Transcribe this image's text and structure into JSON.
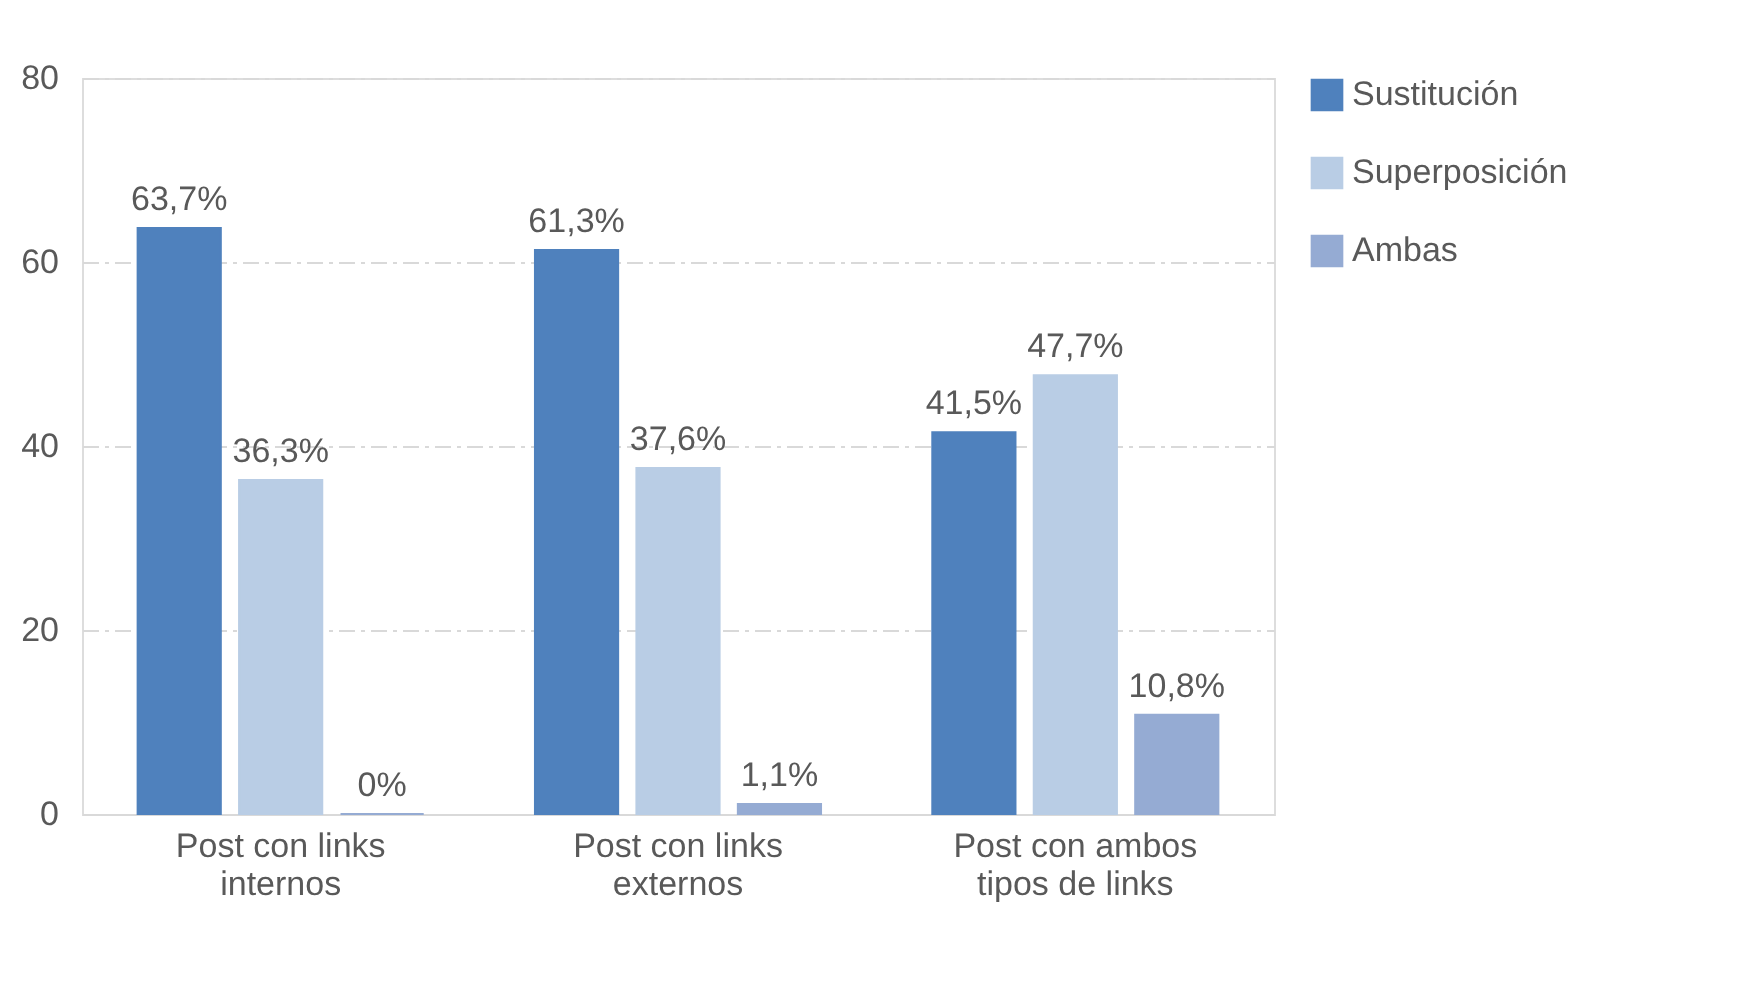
{
  "chart_data": {
    "type": "bar",
    "categories": [
      "Post con links internos",
      "Post con links externos",
      "Post con ambos tipos de links"
    ],
    "series": [
      {
        "name": "Sustitución",
        "color": "#4f81bd",
        "values": [
          63.7,
          61.3,
          41.5
        ],
        "value_labels": [
          "63,7%",
          "61,3%",
          "41,5%"
        ]
      },
      {
        "name": "Superposición",
        "color": "#b9cde5",
        "values": [
          36.3,
          37.6,
          47.7
        ],
        "value_labels": [
          "36,3%",
          "37,6%",
          "47,7%"
        ]
      },
      {
        "name": "Ambas",
        "color": "#95abd3",
        "values": [
          0,
          1.1,
          10.8
        ],
        "value_labels": [
          "0%",
          "1,1%",
          "10,8%"
        ]
      }
    ],
    "ylim": [
      0,
      80
    ],
    "yticks": [
      0,
      20,
      40,
      60,
      80
    ],
    "grid": "y",
    "legend": "right"
  }
}
